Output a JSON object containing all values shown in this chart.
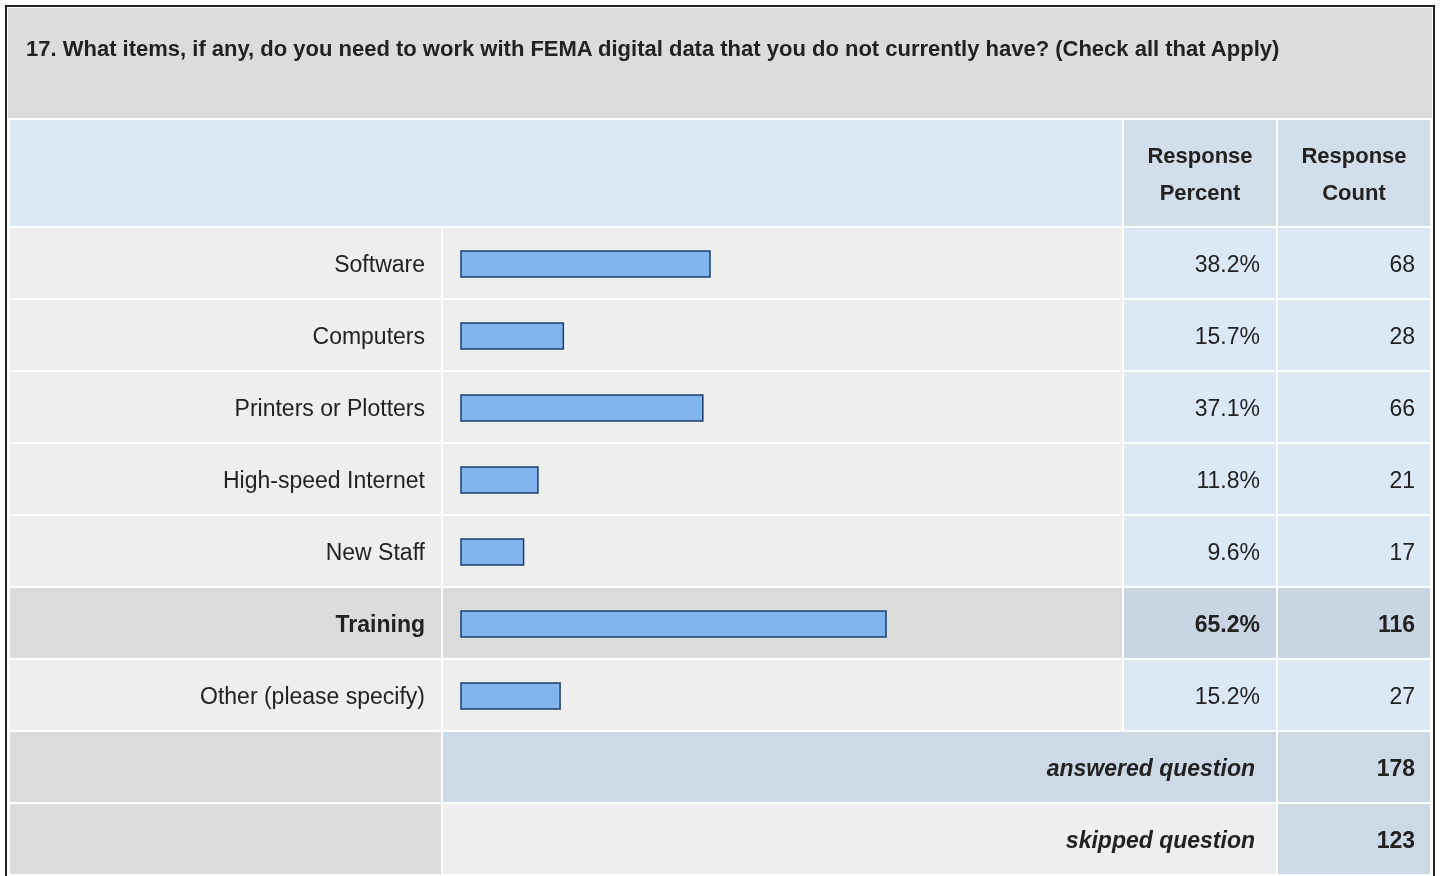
{
  "chart_data": {
    "type": "bar",
    "orientation": "horizontal",
    "title": "17. What items, if any, do you need to work with FEMA digital data that you do not currently have? (Check all that Apply)",
    "categories": [
      "Software",
      "Computers",
      "Printers or Plotters",
      "High-speed Internet",
      "New Staff",
      "Training",
      "Other (please specify)"
    ],
    "series": [
      {
        "name": "Response Percent",
        "color": "#7fb4ec",
        "values": [
          38.2,
          15.7,
          37.1,
          11.8,
          9.6,
          65.2,
          15.2
        ],
        "value_labels": [
          "38.2%",
          "15.7%",
          "37.1%",
          "11.8%",
          "9.6%",
          "65.2%",
          "15.2%"
        ]
      }
    ],
    "annotations": [
      "Response Count",
      "68",
      "28",
      "66",
      "21",
      "17",
      "116",
      "27",
      "answered question",
      "178",
      "skipped question",
      "123"
    ]
  }
}
